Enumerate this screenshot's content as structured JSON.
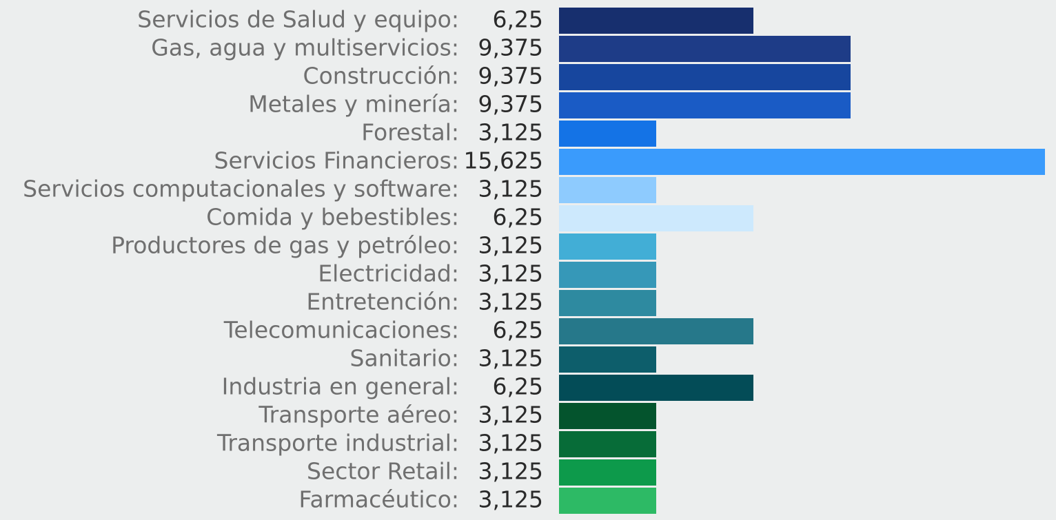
{
  "chart_data": {
    "type": "bar",
    "categories": [
      "Servicios de Salud y equipo:",
      "Gas, agua y multiservicios:",
      "Construcción:",
      "Metales y minería:",
      "Forestal:",
      "Servicios Financieros:",
      "Servicios computacionales y software:",
      "Comida y bebestibles:",
      "Productores de gas y petróleo:",
      "Electricidad:",
      "Entretención:",
      "Telecomunicaciones:",
      "Sanitario:",
      "Industria en general:",
      "Transporte aéreo:",
      "Transporte industrial:",
      "Sector Retail:",
      "Farmacéutico:"
    ],
    "values": [
      6.25,
      9.375,
      9.375,
      9.375,
      3.125,
      15.625,
      3.125,
      6.25,
      3.125,
      3.125,
      3.125,
      6.25,
      3.125,
      6.25,
      3.125,
      3.125,
      3.125,
      3.125
    ],
    "value_labels": [
      "6,25",
      "9,375",
      "9,375",
      "9,375",
      "3,125",
      "15,625",
      "3,125",
      "6,25",
      "3,125",
      "3,125",
      "3,125",
      "6,25",
      "3,125",
      "6,25",
      "3,125",
      "3,125",
      "3,125",
      "3,125"
    ],
    "colors": [
      "#172f6e",
      "#1e3c87",
      "#17469e",
      "#1a5bc5",
      "#1473e6",
      "#3a9bfc",
      "#8ecbfe",
      "#cde9fd",
      "#42aed6",
      "#3698b8",
      "#2e8aa0",
      "#26788a",
      "#0d5e6b",
      "#034c57",
      "#04542d",
      "#076c38",
      "#0d9a4b",
      "#2dba65"
    ]
  }
}
